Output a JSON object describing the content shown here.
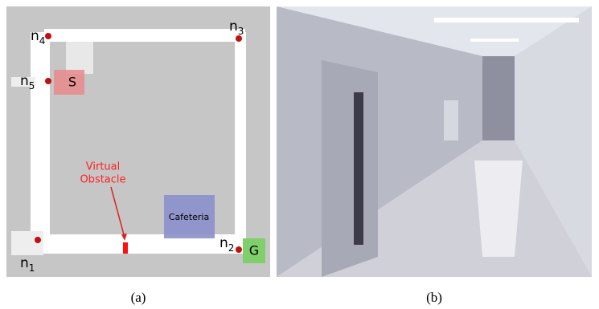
{
  "map": {
    "nodes": [
      {
        "label": "n",
        "subscript": "1"
      },
      {
        "label": "n",
        "subscript": "2"
      },
      {
        "label": "n",
        "subscript": "3"
      },
      {
        "label": "n",
        "subscript": "4"
      },
      {
        "label": "n",
        "subscript": "5"
      }
    ],
    "start": "S",
    "goal": "G",
    "cafeteria": "Cafeteria",
    "virtual_obstacle": [
      "Virtual",
      "Obstacle"
    ]
  },
  "captions": [
    "(a)",
    "(b)"
  ]
}
